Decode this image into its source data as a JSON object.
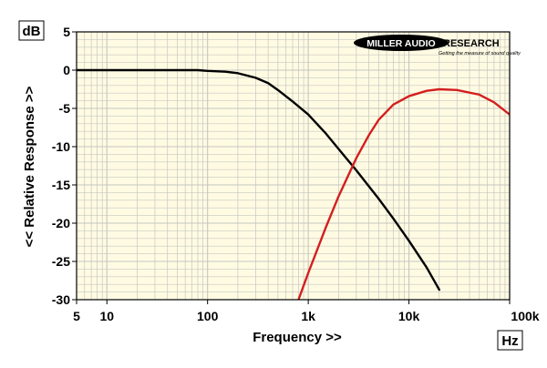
{
  "chart_data": {
    "type": "line",
    "x_scale": "log",
    "xlim": [
      5,
      100000
    ],
    "ylim": [
      -30,
      5
    ],
    "xlabel": "Frequency >>",
    "ylabel": "<< Relative Response >>",
    "y_unit": "dB",
    "x_unit": "Hz",
    "x_ticks": [
      {
        "value": 5,
        "label": "5"
      },
      {
        "value": 10,
        "label": "10"
      },
      {
        "value": 100,
        "label": "100"
      },
      {
        "value": 1000,
        "label": "1k"
      },
      {
        "value": 10000,
        "label": "10k"
      },
      {
        "value": 100000,
        "label": "100k"
      }
    ],
    "y_ticks": [
      {
        "value": 5,
        "label": "5"
      },
      {
        "value": 0,
        "label": "0"
      },
      {
        "value": -5,
        "label": "-5"
      },
      {
        "value": -10,
        "label": "-10"
      },
      {
        "value": -15,
        "label": "-15"
      },
      {
        "value": -20,
        "label": "-20"
      },
      {
        "value": -25,
        "label": "-25"
      },
      {
        "value": -30,
        "label": "-30"
      }
    ],
    "grid": true,
    "background_color": "#fffbe3",
    "grid_color": "#c6c6c0",
    "series": [
      {
        "color": "#000000",
        "x": [
          5,
          10,
          20,
          50,
          80,
          100,
          150,
          200,
          300,
          400,
          500,
          700,
          1000,
          1500,
          2000,
          3000,
          5000,
          7000,
          10000,
          15000,
          20000
        ],
        "y": [
          0,
          0,
          0,
          0,
          0,
          -0.1,
          -0.2,
          -0.4,
          -1.0,
          -1.7,
          -2.6,
          -4.1,
          -5.8,
          -8.3,
          -10.3,
          -13.1,
          -16.8,
          -19.4,
          -22.3,
          -25.8,
          -28.7
        ]
      },
      {
        "color": "#d41e1e",
        "x": [
          800,
          1000,
          1500,
          2000,
          3000,
          4000,
          5000,
          7000,
          10000,
          15000,
          20000,
          30000,
          50000,
          70000,
          100000
        ],
        "y": [
          -30,
          -26.5,
          -20.5,
          -16.5,
          -11.5,
          -8.5,
          -6.5,
          -4.5,
          -3.4,
          -2.7,
          -2.5,
          -2.6,
          -3.2,
          -4.2,
          -5.8
        ]
      }
    ]
  },
  "logo": {
    "main": "MILLER AUDIO",
    "second": "RESEARCH",
    "tagline": "Getting the measure of sound quality"
  }
}
